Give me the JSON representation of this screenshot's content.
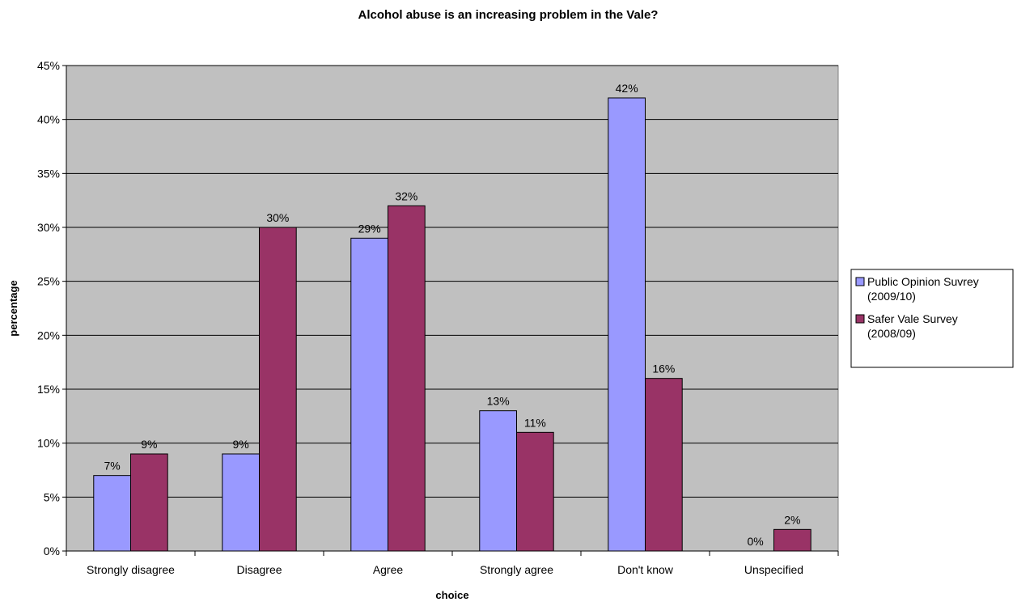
{
  "chart_data": {
    "type": "bar",
    "title": "Alcohol abuse is an increasing problem in the Vale?",
    "xlabel": "choice",
    "ylabel": "percentage",
    "categories": [
      "Strongly disagree",
      "Disagree",
      "Agree",
      "Strongly agree",
      "Don't know",
      "Unspecified"
    ],
    "series": [
      {
        "name": [
          "Public Opinion Suvrey",
          "(2009/10)"
        ],
        "color": "#9999ff",
        "values": [
          7,
          9,
          29,
          13,
          42,
          0
        ],
        "labels": [
          "7%",
          "9%",
          "29%",
          "13%",
          "42%",
          "0%"
        ]
      },
      {
        "name": [
          "Safer Vale Survey",
          "(2008/09)"
        ],
        "color": "#993366",
        "values": [
          9,
          30,
          32,
          11,
          16,
          2
        ],
        "labels": [
          "9%",
          "30%",
          "32%",
          "11%",
          "16%",
          "2%"
        ]
      }
    ],
    "ylim": [
      0,
      45
    ],
    "yticks": [
      0,
      5,
      10,
      15,
      20,
      25,
      30,
      35,
      40,
      45
    ],
    "ytick_labels": [
      "0%",
      "5%",
      "10%",
      "15%",
      "20%",
      "25%",
      "30%",
      "35%",
      "40%",
      "45%"
    ],
    "plot_background": "#c0c0c0",
    "grid": true,
    "legend_position": "right"
  }
}
